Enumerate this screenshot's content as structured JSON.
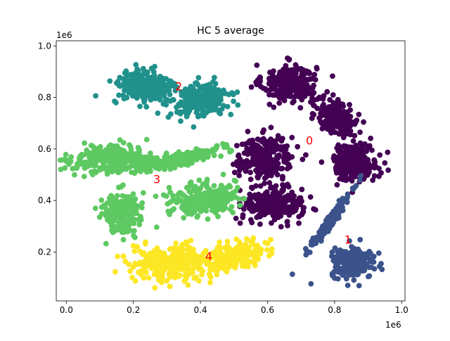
{
  "chart_data": {
    "type": "scatter",
    "title": "HC 5 average",
    "xlabel": "",
    "ylabel": "",
    "x_offset_label": "1e6",
    "y_offset_label": "1e6",
    "xlim": [
      -30000,
      1010000
    ],
    "ylim": [
      10000,
      1020000
    ],
    "x_ticks": [
      {
        "value": 0.0,
        "label": "0.0"
      },
      {
        "value": 200000,
        "label": "0.2"
      },
      {
        "value": 400000,
        "label": "0.4"
      },
      {
        "value": 600000,
        "label": "0.6"
      },
      {
        "value": 800000,
        "label": "0.8"
      },
      {
        "value": 1000000,
        "label": "1.0"
      }
    ],
    "y_ticks": [
      {
        "value": 200000,
        "label": "0.2"
      },
      {
        "value": 400000,
        "label": "0.4"
      },
      {
        "value": 600000,
        "label": "0.6"
      },
      {
        "value": 800000,
        "label": "0.8"
      },
      {
        "value": 1000000,
        "label": "1.0"
      }
    ],
    "grid": false,
    "cluster_colors": {
      "0": "#440154",
      "1": "#3b528b",
      "2": "#21918c",
      "3": "#5ec962",
      "4": "#fde725"
    },
    "annotation_color": "#ff0000",
    "annotations": [
      {
        "text": "0",
        "x": 725000,
        "y": 630000
      },
      {
        "text": "1",
        "x": 840000,
        "y": 245000
      },
      {
        "text": "2",
        "x": 335000,
        "y": 840000
      },
      {
        "text": "3",
        "x": 270000,
        "y": 480000
      },
      {
        "text": "4",
        "x": 425000,
        "y": 180000
      }
    ],
    "blobs": [
      {
        "cluster": 0,
        "cx": 665000,
        "cy": 855000,
        "sx": 40000,
        "sy": 36000,
        "corr": 0.0,
        "n": 260
      },
      {
        "cluster": 0,
        "cx": 810000,
        "cy": 720000,
        "sx": 30000,
        "sy": 34000,
        "corr": -0.3,
        "n": 230
      },
      {
        "cluster": 0,
        "cx": 860000,
        "cy": 550000,
        "sx": 34000,
        "sy": 36000,
        "corr": 0.0,
        "n": 230
      },
      {
        "cluster": 0,
        "cx": 595000,
        "cy": 565000,
        "sx": 42000,
        "sy": 42000,
        "corr": 0.0,
        "n": 260
      },
      {
        "cluster": 0,
        "cx": 615000,
        "cy": 385000,
        "sx": 44000,
        "sy": 32000,
        "corr": 0.0,
        "n": 260
      },
      {
        "cluster": 1,
        "cx": 855000,
        "cy": 155000,
        "sx": 32000,
        "sy": 28000,
        "corr": 0.0,
        "n": 240
      },
      {
        "cluster": 1,
        "cx": 790000,
        "cy": 325000,
        "sx": 28000,
        "sy": 50000,
        "corr": 0.97,
        "n": 200
      },
      {
        "cluster": 2,
        "cx": 235000,
        "cy": 840000,
        "sx": 46000,
        "sy": 34000,
        "corr": 0.0,
        "n": 260
      },
      {
        "cluster": 2,
        "cx": 400000,
        "cy": 790000,
        "sx": 42000,
        "sy": 32000,
        "corr": 0.2,
        "n": 240
      },
      {
        "cluster": 3,
        "cx": 130000,
        "cy": 560000,
        "sx": 58000,
        "sy": 26000,
        "corr": 0.1,
        "n": 280
      },
      {
        "cluster": 3,
        "cx": 335000,
        "cy": 560000,
        "sx": 60000,
        "sy": 20000,
        "corr": 0.75,
        "n": 240
      },
      {
        "cluster": 3,
        "cx": 165000,
        "cy": 350000,
        "sx": 28000,
        "sy": 40000,
        "corr": 0.0,
        "n": 220
      },
      {
        "cluster": 3,
        "cx": 405000,
        "cy": 405000,
        "sx": 50000,
        "sy": 32000,
        "corr": 0.0,
        "n": 250
      },
      {
        "cluster": 4,
        "cx": 310000,
        "cy": 155000,
        "sx": 56000,
        "sy": 34000,
        "corr": 0.0,
        "n": 260
      },
      {
        "cluster": 4,
        "cx": 495000,
        "cy": 185000,
        "sx": 52000,
        "sy": 28000,
        "corr": 0.55,
        "n": 250
      }
    ]
  }
}
